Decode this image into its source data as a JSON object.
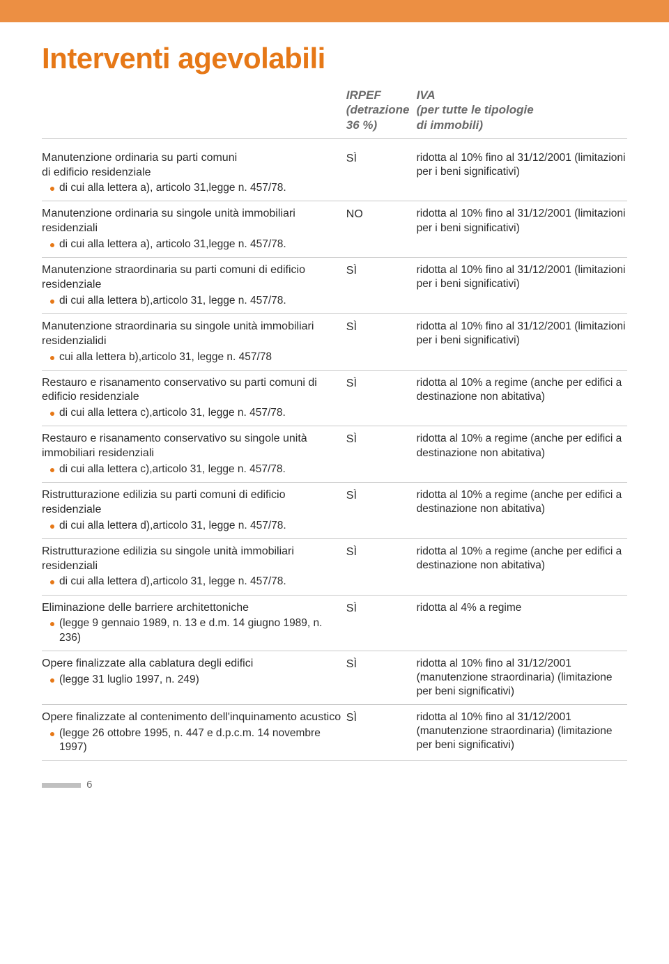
{
  "header_bar_color": "#ec8f43",
  "title": "Interventi agevolabili",
  "title_color": "#e67817",
  "columns": {
    "irpef_label": "IRPEF\n(detrazione\n36 %)",
    "iva_label": "IVA\n(per tutte le tipologie\ndi immobili)"
  },
  "bullet_color": "#e67817",
  "divider_color": "#c8c8c8",
  "rows": [
    {
      "desc": "Manutenzione ordinaria su parti comuni\ndi edificio residenziale",
      "bullet": "di cui alla lettera a), articolo 31,legge n. 457/78.",
      "irpef": "SÌ",
      "iva": "ridotta al 10% fino al 31/12/2001 (limitazioni per i beni significativi)"
    },
    {
      "desc": "Manutenzione ordinaria su singole unità immobiliari residenziali",
      "bullet": "di cui alla lettera a), articolo 31,legge n. 457/78.",
      "irpef": "NO",
      "iva": "ridotta al 10% fino al 31/12/2001 (limitazioni per i beni significativi)"
    },
    {
      "desc": "Manutenzione straordinaria su parti comuni di edificio residenziale",
      "bullet": "di cui alla lettera b),articolo 31, legge n. 457/78.",
      "irpef": "SÌ",
      "iva": "ridotta al 10% fino al 31/12/2001 (limitazioni per i beni significativi)"
    },
    {
      "desc": "Manutenzione straordinaria su singole unità immobiliari residenzialidi",
      "bullet": "cui alla lettera b),articolo 31, legge n. 457/78",
      "irpef": "SÌ",
      "iva": "ridotta al 10% fino al 31/12/2001 (limitazioni per i beni significativi)"
    },
    {
      "desc": "Restauro e risanamento conservativo su parti comuni di edificio residenziale",
      "bullet": "di cui alla lettera c),articolo 31, legge n. 457/78.",
      "irpef": "SÌ",
      "iva": "ridotta al 10% a regime (anche per edifici a destinazione non abitativa)"
    },
    {
      "desc": "Restauro e risanamento conservativo su singole unità immobiliari residenziali",
      "bullet": "di cui alla lettera c),articolo 31, legge n. 457/78.",
      "irpef": "SÌ",
      "iva": "ridotta al 10% a regime (anche per edifici a destinazione non abitativa)"
    },
    {
      "desc": "Ristrutturazione edilizia su parti comuni di edificio residenziale",
      "bullet": "di cui alla lettera d),articolo 31, legge n. 457/78.",
      "irpef": "SÌ",
      "iva": "ridotta al 10% a regime (anche per edifici a destinazione non abitativa)"
    },
    {
      "desc": "Ristrutturazione edilizia su singole unità immobiliari residenziali",
      "bullet": "di cui alla lettera d),articolo 31, legge n. 457/78.",
      "irpef": "SÌ",
      "iva": "ridotta al 10% a regime (anche per edifici a destinazione non abitativa)"
    },
    {
      "desc": "Eliminazione delle barriere architettoniche",
      "bullet": "(legge 9 gennaio 1989, n. 13 e d.m. 14 giugno 1989, n. 236)",
      "irpef": "SÌ",
      "iva": "ridotta al 4% a regime"
    },
    {
      "desc": "Opere finalizzate alla cablatura degli edifici",
      "bullet": "(legge 31 luglio 1997, n. 249)",
      "irpef": "SÌ",
      "iva": "ridotta al 10% fino al 31/12/2001 (manutenzione straordinaria) (limitazione per beni significativi)"
    },
    {
      "desc": "Opere finalizzate al contenimento dell'inquinamento acustico",
      "bullet": "(legge 26 ottobre 1995, n. 447 e d.p.c.m. 14 novembre 1997)",
      "irpef": "SÌ",
      "iva": "ridotta al 10% fino al 31/12/2001 (manutenzione straordinaria) (limitazione per beni significativi)"
    }
  ],
  "page_number": "6"
}
